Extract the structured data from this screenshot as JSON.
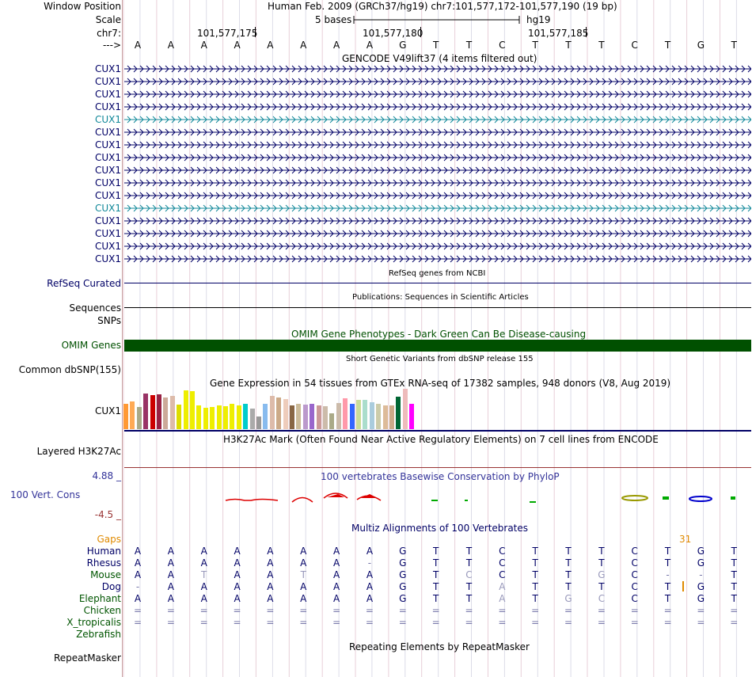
{
  "header": {
    "window_position_label": "Window Position",
    "scale_label": "Scale",
    "chrom_label": "chr7:",
    "strand_label": "--->",
    "assembly_text": "Human Feb. 2009 (GRCh37/hg19)   chr7:101,577,172-101,577,190 (19 bp)",
    "scale_text": "5 bases",
    "db_text": "hg19",
    "ticks": [
      "101,577,175",
      "101,577,180",
      "101,577,185"
    ],
    "sequence": [
      "A",
      "A",
      "A",
      "A",
      "A",
      "A",
      "A",
      "A",
      "G",
      "T",
      "T",
      "C",
      "T",
      "T",
      "T",
      "C",
      "T",
      "G",
      "T"
    ]
  },
  "gencode": {
    "title": "GENCODE V49lift37 (4 items filtered out)",
    "genes": [
      {
        "label": "CUX1",
        "color": "#000066"
      },
      {
        "label": "CUX1",
        "color": "#000066"
      },
      {
        "label": "CUX1",
        "color": "#000066"
      },
      {
        "label": "CUX1",
        "color": "#000066"
      },
      {
        "label": "CUX1",
        "color": "#118899"
      },
      {
        "label": "CUX1",
        "color": "#000066"
      },
      {
        "label": "CUX1",
        "color": "#000066"
      },
      {
        "label": "CUX1",
        "color": "#000066"
      },
      {
        "label": "CUX1",
        "color": "#000066"
      },
      {
        "label": "CUX1",
        "color": "#000066"
      },
      {
        "label": "CUX1",
        "color": "#000066"
      },
      {
        "label": "CUX1",
        "color": "#118899"
      },
      {
        "label": "CUX1",
        "color": "#000066"
      },
      {
        "label": "CUX1",
        "color": "#000066"
      },
      {
        "label": "CUX1",
        "color": "#000066"
      },
      {
        "label": "CUX1",
        "color": "#000066"
      }
    ]
  },
  "refseq": {
    "title": "RefSeq genes from NCBI",
    "label": "RefSeq Curated"
  },
  "publications": {
    "title": "Publications: Sequences in Scientific Articles",
    "label": "Sequences"
  },
  "snps_label": "SNPs",
  "omim": {
    "title": "OMIM Gene Phenotypes - Dark Green Can Be Disease-causing",
    "label": "OMIM Genes",
    "color": "#005000"
  },
  "dbsnp": {
    "title": "Short Genetic Variants from dbSNP release 155",
    "label": "Common dbSNP(155)"
  },
  "gtex": {
    "title": "Gene Expression in 54 tissues from GTEx RNA-seq of 17382 samples, 948 donors (V8, Aug 2019)",
    "label": "CUX1",
    "bars": [
      {
        "v": 0.62,
        "c": "#ff9933"
      },
      {
        "v": 0.68,
        "c": "#ffaa55"
      },
      {
        "v": 0.54,
        "c": "#aaaa88"
      },
      {
        "v": 0.88,
        "c": "#993366"
      },
      {
        "v": 0.84,
        "c": "#cc0000"
      },
      {
        "v": 0.86,
        "c": "#992244"
      },
      {
        "v": 0.78,
        "c": "#ccaa99"
      },
      {
        "v": 0.82,
        "c": "#ddbbaa"
      },
      {
        "v": 0.6,
        "c": "#dddd00"
      },
      {
        "v": 0.96,
        "c": "#eeee00"
      },
      {
        "v": 0.94,
        "c": "#eeee00"
      },
      {
        "v": 0.58,
        "c": "#eeee00"
      },
      {
        "v": 0.52,
        "c": "#eeee00"
      },
      {
        "v": 0.54,
        "c": "#eeee00"
      },
      {
        "v": 0.58,
        "c": "#eeee00"
      },
      {
        "v": 0.56,
        "c": "#eeee00"
      },
      {
        "v": 0.62,
        "c": "#eeee00"
      },
      {
        "v": 0.58,
        "c": "#eeee00"
      },
      {
        "v": 0.62,
        "c": "#00cccc"
      },
      {
        "v": 0.5,
        "c": "#aaaaaa"
      },
      {
        "v": 0.32,
        "c": "#999999"
      },
      {
        "v": 0.62,
        "c": "#88bbee"
      },
      {
        "v": 0.82,
        "c": "#ddbbaa"
      },
      {
        "v": 0.78,
        "c": "#ccaa88"
      },
      {
        "v": 0.74,
        "c": "#eeccbb"
      },
      {
        "v": 0.58,
        "c": "#886644"
      },
      {
        "v": 0.62,
        "c": "#ccbb99"
      },
      {
        "v": 0.6,
        "c": "#bb99cc"
      },
      {
        "v": 0.62,
        "c": "#9966cc"
      },
      {
        "v": 0.58,
        "c": "#cc9999"
      },
      {
        "v": 0.56,
        "c": "#ccbbaa"
      },
      {
        "v": 0.4,
        "c": "#aaaa88"
      },
      {
        "v": 0.64,
        "c": "#ccbbaa"
      },
      {
        "v": 0.76,
        "c": "#ff99aa"
      },
      {
        "v": 0.62,
        "c": "#3366ff"
      },
      {
        "v": 0.72,
        "c": "#ccdd99"
      },
      {
        "v": 0.72,
        "c": "#aaddcc"
      },
      {
        "v": 0.66,
        "c": "#aaccdd"
      },
      {
        "v": 0.62,
        "c": "#ccccaa"
      },
      {
        "v": 0.58,
        "c": "#ddbb99"
      },
      {
        "v": 0.58,
        "c": "#ccaa88"
      },
      {
        "v": 0.8,
        "c": "#006633"
      },
      {
        "v": 1.0,
        "c": "#eebbbb"
      },
      {
        "v": 0.62,
        "c": "#ff00ff"
      }
    ]
  },
  "h3k27ac": {
    "title": "H3K27Ac Mark (Often Found Near Active Regulatory Elements) on 7 cell lines from ENCODE",
    "label": "Layered H3K27Ac"
  },
  "cons": {
    "title": "100 vertebrates Basewise Conservation by PhyloP",
    "label": "100 Vert. Cons",
    "max_label": "4.88 _",
    "min_label": "-4.5 _"
  },
  "multiz": {
    "title": "Multiz Alignments of 100 Vertebrates",
    "gaps_label": "Gaps",
    "gap_count": "31",
    "species": [
      {
        "name": "Human",
        "color": "#000066",
        "seq": [
          "A",
          "A",
          "A",
          "A",
          "A",
          "A",
          "A",
          "A",
          "G",
          "T",
          "T",
          "C",
          "T",
          "T",
          "T",
          "C",
          "T",
          "G",
          "T"
        ]
      },
      {
        "name": "Rhesus",
        "color": "#000066",
        "seq": [
          "A",
          "A",
          "A",
          "A",
          "A",
          "A",
          "A",
          "-",
          "G",
          "T",
          "T",
          "C",
          "T",
          "T",
          "T",
          "C",
          "T",
          "G",
          "T"
        ]
      },
      {
        "name": "Mouse",
        "color": "#005500",
        "seq": [
          "A",
          "A",
          "T",
          "A",
          "A",
          "T",
          "A",
          "A",
          "G",
          "T",
          "C",
          "C",
          "T",
          "T",
          "G",
          "C",
          "-",
          "-",
          "T"
        ]
      },
      {
        "name": "Dog",
        "color": "#000066",
        "seq": [
          "-",
          "A",
          "A",
          "A",
          "A",
          "A",
          "A",
          "A",
          "G",
          "T",
          "T",
          "A",
          "T",
          "T",
          "T",
          "C",
          "T",
          "G",
          "T"
        ]
      },
      {
        "name": "Elephant",
        "color": "#005500",
        "seq": [
          "A",
          "A",
          "A",
          "A",
          "A",
          "A",
          "A",
          "A",
          "G",
          "T",
          "T",
          "A",
          "T",
          "G",
          "C",
          "C",
          "T",
          "G",
          "T"
        ]
      },
      {
        "name": "Chicken",
        "color": "#005500",
        "seq": [
          "=",
          "=",
          "=",
          "=",
          "=",
          "=",
          "=",
          "=",
          "=",
          "=",
          "=",
          "=",
          "=",
          "=",
          "=",
          "=",
          "=",
          "=",
          "="
        ]
      },
      {
        "name": "X_tropicalis",
        "color": "#005500",
        "seq": [
          "=",
          "=",
          "=",
          "=",
          "=",
          "=",
          "=",
          "=",
          "=",
          "=",
          "=",
          "=",
          "=",
          "=",
          "=",
          "=",
          "=",
          "=",
          "="
        ]
      },
      {
        "name": "Zebrafish",
        "color": "#005500",
        "seq": []
      }
    ]
  },
  "repeatmasker": {
    "title": "Repeating Elements by RepeatMasker",
    "label": "RepeatMasker"
  }
}
